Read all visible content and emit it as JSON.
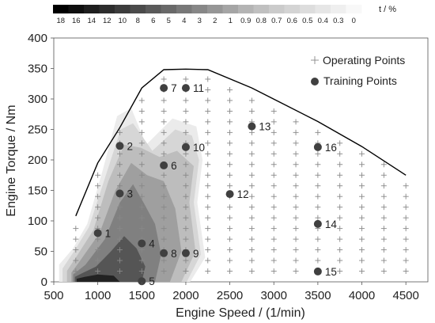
{
  "chart_data": {
    "type": "scatter",
    "title": "",
    "xlabel": "Engine Speed / (1/min)",
    "ylabel": "Engine Torque / Nm",
    "xlim": [
      500,
      4750
    ],
    "ylim": [
      0,
      400
    ],
    "x_ticks": [
      "500",
      "1000",
      "1500",
      "2000",
      "2500",
      "3000",
      "3500",
      "4000",
      "4500"
    ],
    "y_ticks": [
      "0",
      "50",
      "100",
      "150",
      "200",
      "250",
      "300",
      "350",
      "400"
    ],
    "grid": false,
    "colorbar": {
      "unit": "t / %",
      "labels": [
        "18",
        "16",
        "14",
        "12",
        "10",
        "8",
        "6",
        "5",
        "4",
        "3",
        "2",
        "1",
        "0.9",
        "0.8",
        "0.7",
        "0.6",
        "0.5",
        "0.4",
        "0.3",
        "0"
      ],
      "colors": [
        "#000000",
        "#0f0f0f",
        "#1e1e1e",
        "#2d2d2d",
        "#3c3c3c",
        "#4b4b4b",
        "#5a5a5a",
        "#696969",
        "#787878",
        "#878787",
        "#969696",
        "#a5a5a5",
        "#b4b4b4",
        "#c0c0c0",
        "#cbcbcb",
        "#d4d4d4",
        "#dddddd",
        "#e6e6e6",
        "#efefef",
        "#f8f8f8"
      ]
    },
    "full_load_curve": {
      "x": [
        750,
        1000,
        1250,
        1500,
        1750,
        2000,
        2250,
        2750,
        3500,
        4000,
        4500
      ],
      "y": [
        108,
        195,
        253,
        318,
        348,
        349,
        348,
        318,
        263,
        222,
        175
      ]
    },
    "series": [
      {
        "name": "Operating Points",
        "marker": "cross",
        "speeds": [
          750,
          1000,
          1250,
          1500,
          1750,
          2000,
          2250,
          2500,
          2750,
          3000,
          3250,
          3500,
          3750,
          4000,
          4250,
          4500
        ],
        "torque_step": 17.5
      },
      {
        "name": "Training Points",
        "marker": "circle",
        "points": [
          {
            "label": "1",
            "x": 1000,
            "y": 80
          },
          {
            "label": "2",
            "x": 1250,
            "y": 223
          },
          {
            "label": "3",
            "x": 1250,
            "y": 145
          },
          {
            "label": "4",
            "x": 1500,
            "y": 63
          },
          {
            "label": "5",
            "x": 1500,
            "y": 1
          },
          {
            "label": "6",
            "x": 1750,
            "y": 191
          },
          {
            "label": "7",
            "x": 1750,
            "y": 318
          },
          {
            "label": "8",
            "x": 1750,
            "y": 47
          },
          {
            "label": "9",
            "x": 2000,
            "y": 47
          },
          {
            "label": "10",
            "x": 2000,
            "y": 221
          },
          {
            "label": "11",
            "x": 2000,
            "y": 318
          },
          {
            "label": "12",
            "x": 2500,
            "y": 144
          },
          {
            "label": "13",
            "x": 2750,
            "y": 255
          },
          {
            "label": "14",
            "x": 3500,
            "y": 95
          },
          {
            "label": "15",
            "x": 3500,
            "y": 17
          },
          {
            "label": "16",
            "x": 3500,
            "y": 221
          }
        ]
      }
    ],
    "contour_regions": [
      {
        "level": "0.4",
        "color": "#ebebeb",
        "points": [
          [
            560,
            0
          ],
          [
            1000,
            0
          ],
          [
            2050,
            0
          ],
          [
            2220,
            40
          ],
          [
            2130,
            130
          ],
          [
            2190,
            200
          ],
          [
            2120,
            255
          ],
          [
            1850,
            268
          ],
          [
            1550,
            225
          ],
          [
            1380,
            285
          ],
          [
            1220,
            272
          ],
          [
            1050,
            180
          ],
          [
            880,
            95
          ],
          [
            720,
            55
          ],
          [
            560,
            28
          ]
        ]
      },
      {
        "level": "0.6",
        "color": "#d6d6d6",
        "points": [
          [
            600,
            0
          ],
          [
            2010,
            0
          ],
          [
            2170,
            45
          ],
          [
            2090,
            130
          ],
          [
            2150,
            200
          ],
          [
            2070,
            240
          ],
          [
            1880,
            250
          ],
          [
            1620,
            215
          ],
          [
            1400,
            260
          ],
          [
            1260,
            250
          ],
          [
            1080,
            170
          ],
          [
            900,
            90
          ],
          [
            730,
            50
          ],
          [
            600,
            22
          ]
        ]
      },
      {
        "level": "1",
        "color": "#bdbdbd",
        "points": [
          [
            650,
            0
          ],
          [
            1950,
            0
          ],
          [
            2110,
            50
          ],
          [
            2040,
            130
          ],
          [
            2090,
            190
          ],
          [
            1900,
            215
          ],
          [
            1700,
            205
          ],
          [
            1490,
            220
          ],
          [
            1300,
            225
          ],
          [
            1120,
            165
          ],
          [
            950,
            85
          ],
          [
            760,
            42
          ],
          [
            650,
            18
          ]
        ]
      },
      {
        "level": "2",
        "color": "#9f9f9f",
        "points": [
          [
            700,
            0
          ],
          [
            1820,
            0
          ],
          [
            1950,
            50
          ],
          [
            1880,
            120
          ],
          [
            1750,
            165
          ],
          [
            1560,
            175
          ],
          [
            1380,
            195
          ],
          [
            1200,
            150
          ],
          [
            1020,
            80
          ],
          [
            800,
            35
          ],
          [
            700,
            15
          ]
        ]
      },
      {
        "level": "4",
        "color": "#808080",
        "points": [
          [
            720,
            0
          ],
          [
            1650,
            0
          ],
          [
            1720,
            45
          ],
          [
            1650,
            95
          ],
          [
            1520,
            130
          ],
          [
            1400,
            160
          ],
          [
            1250,
            130
          ],
          [
            1080,
            70
          ],
          [
            860,
            28
          ],
          [
            720,
            12
          ]
        ]
      },
      {
        "level": "8",
        "color": "#555555",
        "points": [
          [
            740,
            0
          ],
          [
            1500,
            0
          ],
          [
            1540,
            25
          ],
          [
            1440,
            55
          ],
          [
            1300,
            75
          ],
          [
            1150,
            50
          ],
          [
            980,
            25
          ],
          [
            820,
            14
          ],
          [
            740,
            8
          ]
        ]
      },
      {
        "level": "14",
        "color": "#222222",
        "points": [
          [
            760,
            0
          ],
          [
            1250,
            0
          ],
          [
            1180,
            10
          ],
          [
            1000,
            12
          ],
          [
            850,
            8
          ],
          [
            760,
            5
          ]
        ]
      }
    ]
  }
}
